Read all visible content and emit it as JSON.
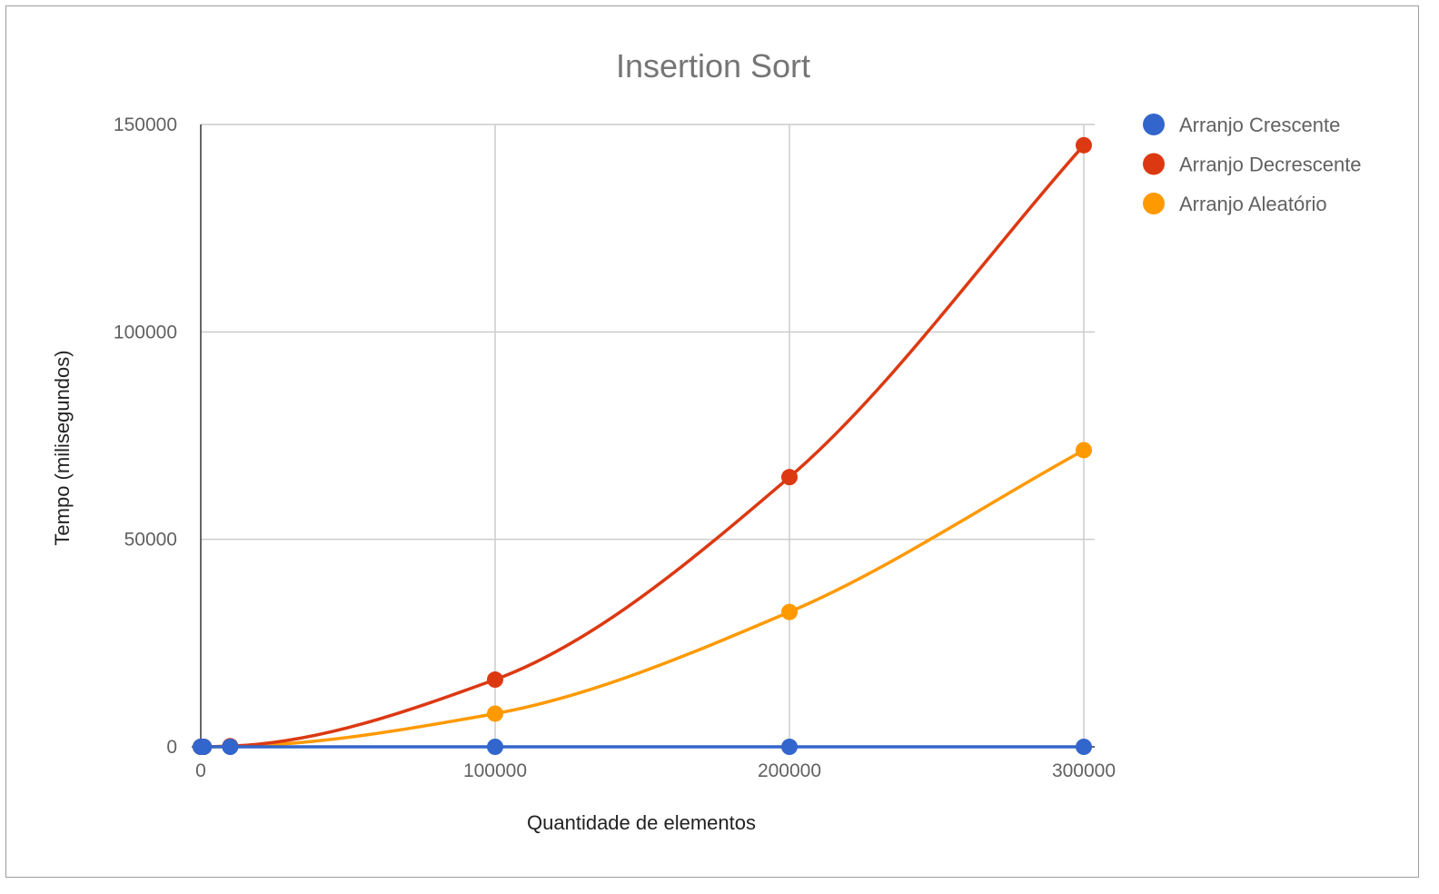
{
  "chart_data": {
    "type": "line",
    "title": "Insertion Sort",
    "xlabel": "Quantidade de elementos",
    "ylabel": "Tempo (milisegundos)",
    "xlim": [
      0,
      300000
    ],
    "ylim": [
      0,
      150000
    ],
    "x_ticks": [
      "0",
      "100000",
      "200000",
      "300000"
    ],
    "y_ticks": [
      "0",
      "50000",
      "100000",
      "150000"
    ],
    "grid": true,
    "legend_position": "right",
    "smooth": true,
    "x": [
      0,
      1000,
      10000,
      100000,
      200000,
      300000
    ],
    "series": [
      {
        "name": "Arranjo Crescente",
        "color": "#3366cc",
        "values": [
          0,
          0,
          0,
          0,
          0,
          0
        ]
      },
      {
        "name": "Arranjo Decrescente",
        "color": "#dc3912",
        "values": [
          0,
          0,
          160,
          16200,
          65000,
          145000
        ]
      },
      {
        "name": "Arranjo Aleatório",
        "color": "#ff9900",
        "values": [
          0,
          0,
          80,
          8000,
          32500,
          71500
        ]
      }
    ]
  }
}
